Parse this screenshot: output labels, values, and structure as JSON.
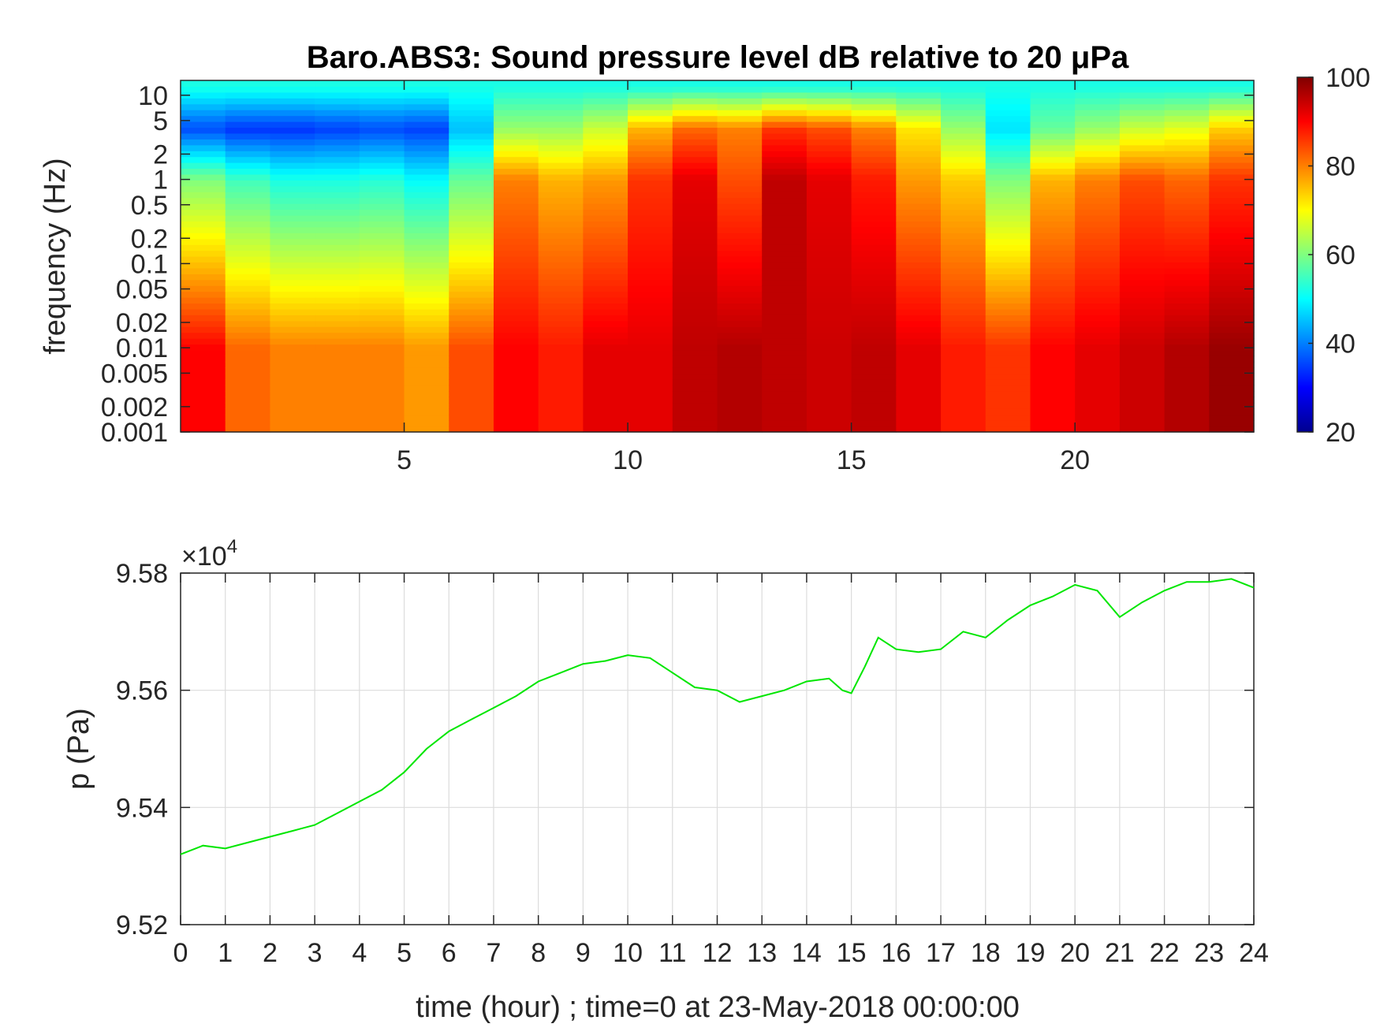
{
  "chart_data": [
    {
      "type": "heatmap",
      "title": "Baro.ABS3: Sound pressure level dB relative to 20 μPa",
      "xlabel": "",
      "ylabel": "frequency (Hz)",
      "y_scale": "log",
      "xlim": [
        0,
        24
      ],
      "ylim": [
        0.001,
        15
      ],
      "x_ticks": [
        5,
        10,
        15,
        20
      ],
      "x_tick_labels": [
        "5",
        "10",
        "15",
        "20"
      ],
      "y_ticks": [
        0.001,
        0.002,
        0.005,
        0.01,
        0.02,
        0.05,
        0.1,
        0.2,
        0.5,
        1,
        2,
        5,
        10
      ],
      "y_tick_labels": [
        "0.001",
        "0.002",
        "0.005",
        "0.01",
        "0.02",
        "0.05",
        "0.1",
        "0.2",
        "0.5",
        "1",
        "2",
        "5",
        "10"
      ],
      "colormap": "jet",
      "colorbar": {
        "range": [
          20,
          100
        ],
        "ticks": [
          20,
          40,
          60,
          80,
          100
        ],
        "tick_labels": [
          "20",
          "40",
          "60",
          "80",
          "100"
        ]
      },
      "time_hours": [
        0.5,
        1.5,
        2.5,
        3.5,
        4.5,
        5.5,
        6.5,
        7.5,
        8.5,
        9.5,
        10.5,
        11.5,
        12.5,
        13.5,
        14.5,
        15.5,
        16.5,
        17.5,
        18.5,
        19.5,
        20.5,
        21.5,
        22.5,
        23.5
      ],
      "band_low_dB": [
        90,
        82,
        80,
        80,
        80,
        78,
        84,
        90,
        88,
        92,
        92,
        95,
        96,
        95,
        94,
        95,
        92,
        88,
        86,
        90,
        92,
        94,
        96,
        98
      ],
      "band_mid_dB": [
        60,
        55,
        52,
        52,
        53,
        50,
        58,
        80,
        76,
        78,
        86,
        92,
        84,
        95,
        92,
        88,
        78,
        74,
        60,
        76,
        80,
        84,
        82,
        86
      ],
      "band_high_dB": [
        36,
        34,
        34,
        35,
        36,
        35,
        45,
        62,
        62,
        66,
        76,
        82,
        80,
        86,
        84,
        80,
        72,
        62,
        48,
        58,
        62,
        66,
        68,
        74
      ]
    },
    {
      "type": "line",
      "title": "",
      "xlabel": "time (hour) ; time=0 at 23-May-2018 00:00:00",
      "ylabel": "p (Pa)",
      "y_multiplier_label": "×10",
      "y_multiplier_exp": "4",
      "xlim": [
        0,
        24
      ],
      "ylim": [
        95200,
        95800
      ],
      "grid": true,
      "x_ticks": [
        0,
        1,
        2,
        3,
        4,
        5,
        6,
        7,
        8,
        9,
        10,
        11,
        12,
        13,
        14,
        15,
        16,
        17,
        18,
        19,
        20,
        21,
        22,
        23,
        24
      ],
      "x_tick_labels": [
        "0",
        "1",
        "2",
        "3",
        "4",
        "5",
        "6",
        "7",
        "8",
        "9",
        "10",
        "11",
        "12",
        "13",
        "14",
        "15",
        "16",
        "17",
        "18",
        "19",
        "20",
        "21",
        "22",
        "23",
        "24"
      ],
      "y_ticks": [
        95200,
        95400,
        95600,
        95800
      ],
      "y_tick_labels": [
        "9.52",
        "9.54",
        "9.56",
        "9.58"
      ],
      "line_color": "#00e600",
      "x": [
        0,
        0.5,
        1,
        1.5,
        2,
        2.5,
        3,
        3.5,
        4,
        4.5,
        5,
        5.5,
        6,
        6.5,
        7,
        7.5,
        8,
        8.5,
        9,
        9.5,
        10,
        10.5,
        11,
        11.5,
        12,
        12.5,
        13,
        13.5,
        14,
        14.5,
        14.8,
        15,
        15.3,
        15.6,
        16,
        16.5,
        17,
        17.5,
        18,
        18.5,
        19,
        19.5,
        20,
        20.5,
        21,
        21.5,
        22,
        22.5,
        23,
        23.5,
        24
      ],
      "y": [
        95320,
        95335,
        95330,
        95340,
        95350,
        95360,
        95370,
        95390,
        95410,
        95430,
        95460,
        95500,
        95530,
        95550,
        95570,
        95590,
        95615,
        95630,
        95645,
        95650,
        95660,
        95655,
        95630,
        95605,
        95600,
        95580,
        95590,
        95600,
        95615,
        95620,
        95600,
        95595,
        95640,
        95690,
        95670,
        95665,
        95670,
        95700,
        95690,
        95720,
        95745,
        95760,
        95780,
        95770,
        95725,
        95750,
        95770,
        95785,
        95785,
        95790,
        95775
      ]
    }
  ]
}
